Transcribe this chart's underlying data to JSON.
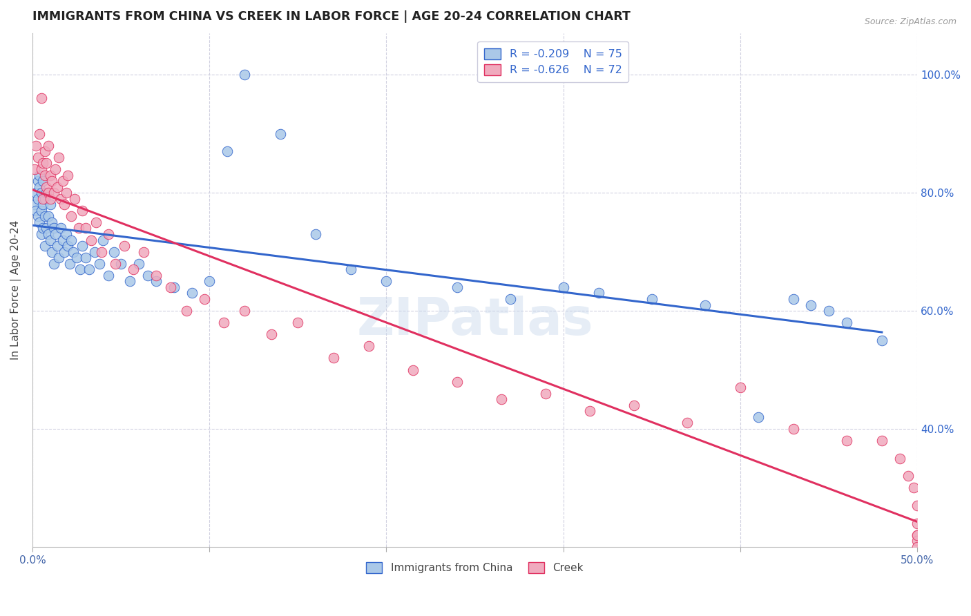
{
  "title": "IMMIGRANTS FROM CHINA VS CREEK IN LABOR FORCE | AGE 20-24 CORRELATION CHART",
  "source": "Source: ZipAtlas.com",
  "ylabel": "In Labor Force | Age 20-24",
  "xlim": [
    0.0,
    0.5
  ],
  "ylim": [
    0.2,
    1.07
  ],
  "xticks": [
    0.0,
    0.1,
    0.2,
    0.3,
    0.4,
    0.5
  ],
  "xticklabels": [
    "0.0%",
    "",
    "",
    "",
    "",
    "50.0%"
  ],
  "yticks_right": [
    0.4,
    0.6,
    0.8,
    1.0
  ],
  "yticklabels_right": [
    "40.0%",
    "60.0%",
    "80.0%",
    "100.0%"
  ],
  "legend_r_china": "R = -0.209",
  "legend_n_china": "N = 75",
  "legend_r_creek": "R = -0.626",
  "legend_n_creek": "N = 72",
  "color_china": "#aac8e8",
  "color_creek": "#f0aabe",
  "line_color_china": "#3366cc",
  "line_color_creek": "#e03060",
  "background_color": "#ffffff",
  "grid_color": "#d0d0e0",
  "china_x": [
    0.001,
    0.002,
    0.002,
    0.003,
    0.003,
    0.003,
    0.004,
    0.004,
    0.004,
    0.005,
    0.005,
    0.005,
    0.006,
    0.006,
    0.006,
    0.007,
    0.007,
    0.007,
    0.008,
    0.008,
    0.009,
    0.009,
    0.01,
    0.01,
    0.011,
    0.011,
    0.012,
    0.012,
    0.013,
    0.014,
    0.015,
    0.016,
    0.017,
    0.018,
    0.019,
    0.02,
    0.021,
    0.022,
    0.023,
    0.025,
    0.027,
    0.028,
    0.03,
    0.032,
    0.035,
    0.038,
    0.04,
    0.043,
    0.046,
    0.05,
    0.055,
    0.06,
    0.065,
    0.07,
    0.08,
    0.09,
    0.1,
    0.11,
    0.12,
    0.14,
    0.16,
    0.18,
    0.2,
    0.24,
    0.27,
    0.3,
    0.32,
    0.35,
    0.38,
    0.41,
    0.43,
    0.44,
    0.45,
    0.46,
    0.48
  ],
  "china_y": [
    0.78,
    0.8,
    0.77,
    0.82,
    0.76,
    0.79,
    0.81,
    0.75,
    0.83,
    0.77,
    0.8,
    0.73,
    0.78,
    0.74,
    0.82,
    0.76,
    0.71,
    0.79,
    0.74,
    0.8,
    0.73,
    0.76,
    0.72,
    0.78,
    0.75,
    0.7,
    0.74,
    0.68,
    0.73,
    0.71,
    0.69,
    0.74,
    0.72,
    0.7,
    0.73,
    0.71,
    0.68,
    0.72,
    0.7,
    0.69,
    0.67,
    0.71,
    0.69,
    0.67,
    0.7,
    0.68,
    0.72,
    0.66,
    0.7,
    0.68,
    0.65,
    0.68,
    0.66,
    0.65,
    0.64,
    0.63,
    0.65,
    0.87,
    1.0,
    0.9,
    0.73,
    0.67,
    0.65,
    0.64,
    0.62,
    0.64,
    0.63,
    0.62,
    0.61,
    0.42,
    0.62,
    0.61,
    0.6,
    0.58,
    0.55
  ],
  "creek_x": [
    0.001,
    0.002,
    0.003,
    0.004,
    0.005,
    0.005,
    0.006,
    0.006,
    0.007,
    0.007,
    0.008,
    0.008,
    0.009,
    0.009,
    0.01,
    0.01,
    0.011,
    0.012,
    0.013,
    0.014,
    0.015,
    0.016,
    0.017,
    0.018,
    0.019,
    0.02,
    0.022,
    0.024,
    0.026,
    0.028,
    0.03,
    0.033,
    0.036,
    0.039,
    0.043,
    0.047,
    0.052,
    0.057,
    0.063,
    0.07,
    0.078,
    0.087,
    0.097,
    0.108,
    0.12,
    0.135,
    0.15,
    0.17,
    0.19,
    0.215,
    0.24,
    0.265,
    0.29,
    0.315,
    0.34,
    0.37,
    0.4,
    0.43,
    0.46,
    0.48,
    0.49,
    0.495,
    0.498,
    0.5,
    0.5,
    0.5,
    0.5,
    0.5,
    0.5,
    0.5,
    0.5,
    0.5
  ],
  "creek_y": [
    0.84,
    0.88,
    0.86,
    0.9,
    0.84,
    0.96,
    0.85,
    0.79,
    0.83,
    0.87,
    0.81,
    0.85,
    0.88,
    0.8,
    0.83,
    0.79,
    0.82,
    0.8,
    0.84,
    0.81,
    0.86,
    0.79,
    0.82,
    0.78,
    0.8,
    0.83,
    0.76,
    0.79,
    0.74,
    0.77,
    0.74,
    0.72,
    0.75,
    0.7,
    0.73,
    0.68,
    0.71,
    0.67,
    0.7,
    0.66,
    0.64,
    0.6,
    0.62,
    0.58,
    0.6,
    0.56,
    0.58,
    0.52,
    0.54,
    0.5,
    0.48,
    0.45,
    0.46,
    0.43,
    0.44,
    0.41,
    0.47,
    0.4,
    0.38,
    0.38,
    0.35,
    0.32,
    0.3,
    0.27,
    0.24,
    0.22,
    0.21,
    0.2,
    0.19,
    0.18,
    0.17,
    0.22
  ]
}
